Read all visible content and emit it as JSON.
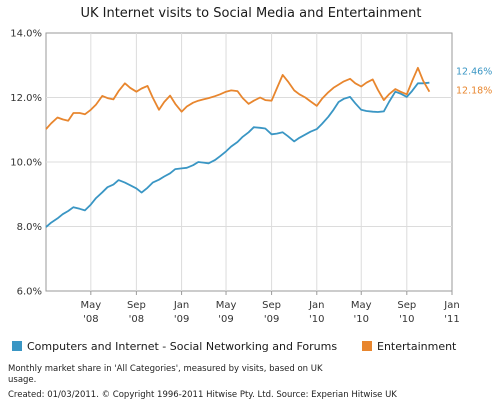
{
  "chart_data": {
    "type": "line",
    "title": "UK Internet visits to Social Media and Entertainment",
    "xlabel": "",
    "ylabel": "",
    "x_tick_labels": [
      {
        "month": "May",
        "year": "'08"
      },
      {
        "month": "Sep",
        "year": "'08"
      },
      {
        "month": "Jan",
        "year": "'09"
      },
      {
        "month": "May",
        "year": "'09"
      },
      {
        "month": "Sep",
        "year": "'09"
      },
      {
        "month": "Jan",
        "year": "'10"
      },
      {
        "month": "May",
        "year": "'10"
      },
      {
        "month": "Sep",
        "year": "'10"
      },
      {
        "month": "Jan",
        "year": "'11"
      }
    ],
    "y_tick_labels": [
      "6.0%",
      "8.0%",
      "10.0%",
      "12.0%",
      "14.0%"
    ],
    "ylim": [
      6.0,
      14.0
    ],
    "x_range": [
      "2008-01-01",
      "2011-01-01"
    ],
    "grid": true,
    "legend_position": "bottom",
    "series": [
      {
        "name": "Computers and Internet - Social Networking and Forums",
        "color": "#3a96c4",
        "end_label": "12.46%",
        "points": [
          [
            "2008-01-01",
            7.98
          ],
          [
            "2008-01-15",
            8.12
          ],
          [
            "2008-02-01",
            8.25
          ],
          [
            "2008-02-15",
            8.38
          ],
          [
            "2008-03-01",
            8.48
          ],
          [
            "2008-03-15",
            8.6
          ],
          [
            "2008-04-01",
            8.55
          ],
          [
            "2008-04-15",
            8.5
          ],
          [
            "2008-05-01",
            8.68
          ],
          [
            "2008-05-15",
            8.88
          ],
          [
            "2008-06-01",
            9.06
          ],
          [
            "2008-06-15",
            9.22
          ],
          [
            "2008-07-01",
            9.3
          ],
          [
            "2008-07-15",
            9.44
          ],
          [
            "2008-08-01",
            9.36
          ],
          [
            "2008-08-15",
            9.28
          ],
          [
            "2008-09-01",
            9.18
          ],
          [
            "2008-09-15",
            9.05
          ],
          [
            "2008-10-01",
            9.2
          ],
          [
            "2008-10-15",
            9.36
          ],
          [
            "2008-11-01",
            9.45
          ],
          [
            "2008-11-15",
            9.55
          ],
          [
            "2008-12-01",
            9.65
          ],
          [
            "2008-12-15",
            9.78
          ],
          [
            "2009-01-01",
            9.8
          ],
          [
            "2009-01-15",
            9.82
          ],
          [
            "2009-02-01",
            9.9
          ],
          [
            "2009-02-15",
            10.0
          ],
          [
            "2009-03-01",
            9.98
          ],
          [
            "2009-03-15",
            9.96
          ],
          [
            "2009-04-01",
            10.06
          ],
          [
            "2009-04-15",
            10.18
          ],
          [
            "2009-05-01",
            10.33
          ],
          [
            "2009-05-15",
            10.48
          ],
          [
            "2009-06-01",
            10.62
          ],
          [
            "2009-06-15",
            10.78
          ],
          [
            "2009-07-01",
            10.92
          ],
          [
            "2009-07-15",
            11.08
          ],
          [
            "2009-08-01",
            11.06
          ],
          [
            "2009-08-15",
            11.04
          ],
          [
            "2009-09-01",
            10.86
          ],
          [
            "2009-09-15",
            10.88
          ],
          [
            "2009-10-01",
            10.92
          ],
          [
            "2009-10-15",
            10.8
          ],
          [
            "2009-11-01",
            10.64
          ],
          [
            "2009-11-15",
            10.75
          ],
          [
            "2009-12-01",
            10.85
          ],
          [
            "2009-12-15",
            10.94
          ],
          [
            "2010-01-01",
            11.02
          ],
          [
            "2010-01-15",
            11.18
          ],
          [
            "2010-02-01",
            11.4
          ],
          [
            "2010-02-15",
            11.62
          ],
          [
            "2010-03-01",
            11.86
          ],
          [
            "2010-03-15",
            11.96
          ],
          [
            "2010-04-01",
            12.02
          ],
          [
            "2010-04-15",
            11.82
          ],
          [
            "2010-05-01",
            11.62
          ],
          [
            "2010-05-15",
            11.58
          ],
          [
            "2010-06-01",
            11.56
          ],
          [
            "2010-06-15",
            11.55
          ],
          [
            "2010-07-01",
            11.57
          ],
          [
            "2010-07-15",
            11.86
          ],
          [
            "2010-08-01",
            12.18
          ],
          [
            "2010-08-15",
            12.12
          ],
          [
            "2010-09-01",
            12.02
          ],
          [
            "2010-09-15",
            12.2
          ],
          [
            "2010-10-01",
            12.44
          ],
          [
            "2010-10-15",
            12.44
          ],
          [
            "2010-11-01",
            12.46
          ]
        ]
      },
      {
        "name": "Entertainment",
        "color": "#e8862e",
        "end_label": "12.18%",
        "points": [
          [
            "2008-01-01",
            11.02
          ],
          [
            "2008-01-15",
            11.2
          ],
          [
            "2008-02-01",
            11.38
          ],
          [
            "2008-02-15",
            11.32
          ],
          [
            "2008-03-01",
            11.28
          ],
          [
            "2008-03-15",
            11.52
          ],
          [
            "2008-04-01",
            11.52
          ],
          [
            "2008-04-15",
            11.48
          ],
          [
            "2008-05-01",
            11.62
          ],
          [
            "2008-05-15",
            11.78
          ],
          [
            "2008-06-01",
            12.05
          ],
          [
            "2008-06-15",
            11.98
          ],
          [
            "2008-07-01",
            11.94
          ],
          [
            "2008-07-15",
            12.2
          ],
          [
            "2008-08-01",
            12.44
          ],
          [
            "2008-08-15",
            12.3
          ],
          [
            "2008-09-01",
            12.18
          ],
          [
            "2008-09-15",
            12.28
          ],
          [
            "2008-10-01",
            12.36
          ],
          [
            "2008-10-15",
            12.0
          ],
          [
            "2008-11-01",
            11.62
          ],
          [
            "2008-11-15",
            11.86
          ],
          [
            "2008-12-01",
            12.06
          ],
          [
            "2008-12-15",
            11.8
          ],
          [
            "2009-01-01",
            11.56
          ],
          [
            "2009-01-15",
            11.72
          ],
          [
            "2009-02-01",
            11.84
          ],
          [
            "2009-02-15",
            11.9
          ],
          [
            "2009-03-01",
            11.94
          ],
          [
            "2009-03-15",
            11.98
          ],
          [
            "2009-04-01",
            12.04
          ],
          [
            "2009-04-15",
            12.1
          ],
          [
            "2009-05-01",
            12.18
          ],
          [
            "2009-05-15",
            12.22
          ],
          [
            "2009-06-01",
            12.2
          ],
          [
            "2009-06-15",
            11.98
          ],
          [
            "2009-07-01",
            11.8
          ],
          [
            "2009-07-15",
            11.9
          ],
          [
            "2009-08-01",
            12.0
          ],
          [
            "2009-08-15",
            11.92
          ],
          [
            "2009-09-01",
            11.9
          ],
          [
            "2009-09-15",
            12.28
          ],
          [
            "2009-10-01",
            12.7
          ],
          [
            "2009-10-15",
            12.5
          ],
          [
            "2009-11-01",
            12.22
          ],
          [
            "2009-11-15",
            12.1
          ],
          [
            "2009-12-01",
            12.0
          ],
          [
            "2009-12-15",
            11.88
          ],
          [
            "2010-01-01",
            11.74
          ],
          [
            "2010-01-15",
            11.96
          ],
          [
            "2010-02-01",
            12.16
          ],
          [
            "2010-02-15",
            12.3
          ],
          [
            "2010-03-01",
            12.4
          ],
          [
            "2010-03-15",
            12.5
          ],
          [
            "2010-04-01",
            12.58
          ],
          [
            "2010-04-15",
            12.44
          ],
          [
            "2010-05-01",
            12.34
          ],
          [
            "2010-05-15",
            12.46
          ],
          [
            "2010-06-01",
            12.56
          ],
          [
            "2010-06-15",
            12.24
          ],
          [
            "2010-07-01",
            11.92
          ],
          [
            "2010-07-15",
            12.1
          ],
          [
            "2010-08-01",
            12.26
          ],
          [
            "2010-08-15",
            12.18
          ],
          [
            "2010-09-01",
            12.1
          ],
          [
            "2010-09-15",
            12.5
          ],
          [
            "2010-10-01",
            12.92
          ],
          [
            "2010-10-15",
            12.52
          ],
          [
            "2010-11-01",
            12.18
          ]
        ]
      }
    ]
  },
  "footnote": {
    "line1": "Monthly market share in 'All Categories', measured by visits, based on UK",
    "line2": "usage.",
    "line3": "Created: 01/03/2011. © Copyright 1996-2011 Hitwise Pty. Ltd.   Source: Experian Hitwise UK"
  }
}
